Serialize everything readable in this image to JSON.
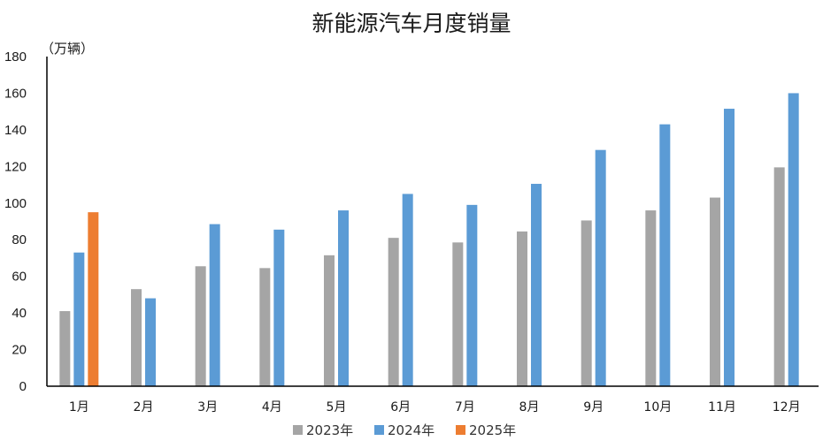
{
  "chart_data": {
    "type": "bar",
    "title": "新能源汽车月度销量",
    "unit_label": "（万辆）",
    "xlabel": "",
    "ylabel": "",
    "ylim": [
      0,
      180
    ],
    "yticks": [
      0,
      20,
      40,
      60,
      80,
      100,
      120,
      140,
      160,
      180
    ],
    "grid": false,
    "legend_position": "bottom",
    "categories": [
      "1月",
      "2月",
      "3月",
      "4月",
      "5月",
      "6月",
      "7月",
      "8月",
      "9月",
      "10月",
      "11月",
      "12月"
    ],
    "series": [
      {
        "name": "2023年",
        "color": "#a5a5a5",
        "values": [
          41,
          53,
          65.5,
          64.5,
          71.5,
          81,
          78.5,
          84.5,
          90.5,
          96,
          103,
          119.5
        ]
      },
      {
        "name": "2024年",
        "color": "#5b9bd5",
        "values": [
          73,
          48,
          88.5,
          85.5,
          96,
          105,
          99,
          110.5,
          129,
          143,
          151.5,
          160
        ]
      },
      {
        "name": "2025年",
        "color": "#ed7d31",
        "values": [
          95,
          null,
          null,
          null,
          null,
          null,
          null,
          null,
          null,
          null,
          null,
          null
        ]
      }
    ]
  }
}
